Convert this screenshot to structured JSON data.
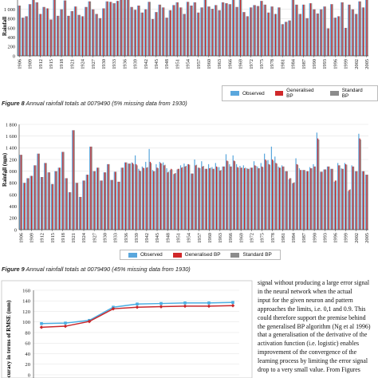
{
  "colors": {
    "observed": "#5aa7dd",
    "generalised": "#d0282a",
    "standard": "#8c8c8c",
    "line_a": "#4aaee2",
    "line_b": "#c8262a"
  },
  "figure8": {
    "caption_num": "Figure 8",
    "caption_text": "Annual rainfall totals at 0079490 (5% missing data from 1930)"
  },
  "figure9": {
    "caption_num": "Figure 9",
    "caption_text": "Annual rainfall totals at 0079490 (45% missing data from 1930)"
  },
  "legend": {
    "observed": "Observed",
    "generalised": "Generalised BP",
    "standard": "Standard BP"
  },
  "body_text": [
    "signal without producing a large error signal",
    "in the neural network when the actual",
    "input for the given neuron and pattern",
    "approaches the limits, i.e. 0,1 and 0.9. This",
    "could therefore support the premise behind",
    "the generalised BP algorithm (Ng et al 1996)",
    "that a generalisation of the derivative of the",
    "activation function (i.e. logistic) enables",
    "improvement of the convergence of the",
    "learning process by limiting the error signal",
    "drop to a very small value. From Figures"
  ],
  "chart_data": [
    {
      "type": "bar",
      "ylabel": "Rainfall",
      "ylim": [
        0,
        1200
      ],
      "yticks": [
        "0",
        "200",
        "400",
        "600",
        "800",
        "1 000"
      ],
      "ytick_values": [
        0,
        200,
        400,
        600,
        800,
        1000
      ],
      "x_start": 1906,
      "xtick_labels": [
        "1906",
        "1909",
        "1912",
        "1915",
        "1918",
        "1921",
        "1924",
        "1927",
        "1930",
        "1933",
        "1936",
        "1939",
        "1942",
        "1945",
        "1948",
        "1951",
        "1954",
        "1957",
        "1960",
        "1963",
        "1966",
        "1969",
        "1972",
        "1975",
        "1978",
        "1981",
        "1984",
        "1987",
        "1990",
        "1993",
        "1996",
        "1999",
        "2002",
        "2005"
      ],
      "legend_position": "bottom-right",
      "grid": true,
      "series": [
        {
          "name": "Observed",
          "values": [
            1080,
            820,
            850,
            1110,
            1240,
            1150,
            900,
            1050,
            1020,
            780,
            1200,
            860,
            1000,
            1190,
            860,
            960,
            1060,
            880,
            850,
            1050,
            1170,
            1000,
            900,
            810,
            1020,
            1170,
            1160,
            1130,
            1180,
            1260,
            1210,
            1240,
            1050,
            990,
            1080,
            930,
            1000,
            1160,
            790,
            940,
            1100,
            1040,
            820,
            980,
            1090,
            1150,
            1040,
            900,
            1160,
            1080,
            1150,
            930,
            1040,
            1200,
            1060,
            1010,
            1090,
            980,
            1150,
            1130,
            1110,
            1230,
            1050,
            1230,
            940,
            850,
            1040,
            1090,
            1070,
            1180,
            1100,
            930,
            1060,
            900,
            1040,
            680,
            730,
            760,
            1240,
            1100,
            900,
            1100,
            810,
            1130,
            1000,
            910,
            1000,
            1060,
            590,
            1110,
            820,
            850,
            1150,
            600,
            1100,
            1000,
            900,
            1170,
            1040,
            1200
          ]
        },
        {
          "name": "Generalised BP",
          "values": [
            1080,
            820,
            850,
            1110,
            1240,
            1150,
            900,
            1050,
            1020,
            780,
            1200,
            860,
            1000,
            1190,
            860,
            960,
            1060,
            880,
            850,
            1050,
            1170,
            1000,
            900,
            810,
            1020,
            1170,
            1160,
            1130,
            1180,
            1260,
            1210,
            1240,
            1050,
            990,
            1080,
            930,
            1000,
            1160,
            790,
            940,
            1100,
            1040,
            820,
            980,
            1090,
            1150,
            1040,
            900,
            1160,
            1080,
            1150,
            930,
            1040,
            1200,
            1060,
            1010,
            1090,
            980,
            1150,
            1130,
            1110,
            1230,
            1050,
            1230,
            940,
            850,
            1040,
            1090,
            1070,
            1180,
            1100,
            930,
            1060,
            900,
            1040,
            680,
            730,
            760,
            1240,
            1100,
            900,
            1100,
            810,
            1130,
            1000,
            910,
            1000,
            1060,
            590,
            1110,
            820,
            850,
            1150,
            600,
            1100,
            1000,
            900,
            1170,
            1040,
            1200
          ]
        },
        {
          "name": "Standard BP",
          "values": [
            1080,
            820,
            850,
            1110,
            1240,
            1150,
            900,
            1050,
            1020,
            780,
            1200,
            860,
            1000,
            1190,
            860,
            960,
            1060,
            880,
            850,
            1050,
            1170,
            1000,
            900,
            810,
            1020,
            1170,
            1160,
            1130,
            1180,
            1260,
            1210,
            1240,
            1050,
            990,
            1080,
            930,
            1000,
            1160,
            790,
            940,
            1100,
            1040,
            820,
            980,
            1090,
            1150,
            1040,
            900,
            1160,
            1080,
            1150,
            930,
            1040,
            1200,
            1060,
            1010,
            1090,
            980,
            1150,
            1130,
            1110,
            1230,
            1050,
            1230,
            940,
            850,
            1040,
            1090,
            1070,
            1180,
            1100,
            930,
            1060,
            900,
            1040,
            680,
            730,
            760,
            1240,
            1100,
            900,
            1100,
            810,
            1130,
            1000,
            910,
            1000,
            1060,
            590,
            1110,
            820,
            850,
            1150,
            600,
            1100,
            1000,
            900,
            1170,
            1040,
            1200
          ]
        }
      ]
    },
    {
      "type": "bar",
      "ylabel": "Rainfall (mm)",
      "ylim": [
        0,
        1800
      ],
      "yticks": [
        "0",
        "200",
        "400",
        "600",
        "800",
        "1 000",
        "1 200",
        "1 400",
        "1 600",
        "1 800"
      ],
      "ytick_values": [
        0,
        200,
        400,
        600,
        800,
        1000,
        1200,
        1400,
        1600,
        1800
      ],
      "x_start": 1906,
      "xtick_labels": [
        "1906",
        "1909",
        "1912",
        "1915",
        "1918",
        "1921",
        "1924",
        "1927",
        "1930",
        "1933",
        "1936",
        "1939",
        "1942",
        "1945",
        "1948",
        "1951",
        "1954",
        "1957",
        "1960",
        "1963",
        "1966",
        "1969",
        "1972",
        "1975",
        "1978",
        "1981",
        "1984",
        "1987",
        "1990",
        "1993",
        "1996",
        "1999",
        "2002",
        "2005"
      ],
      "legend_position": "bottom-right",
      "grid": true,
      "series": [
        {
          "name": "Observed",
          "values": [
            1280,
            800,
            880,
            920,
            1100,
            1300,
            900,
            1140,
            980,
            780,
            1000,
            1060,
            1330,
            880,
            640,
            1700,
            800,
            560,
            840,
            940,
            1420,
            1000,
            1060,
            840,
            980,
            1120,
            850,
            990,
            820,
            1060,
            1150,
            1130,
            1150,
            1270,
            1040,
            1080,
            1160,
            1380,
            1020,
            1120,
            1160,
            1150,
            1050,
            1020,
            950,
            1030,
            1100,
            1130,
            1120,
            960,
            1200,
            1060,
            1170,
            1040,
            1120,
            1070,
            1140,
            1070,
            1080,
            1290,
            1120,
            1270,
            1120,
            1090,
            1100,
            1050,
            1060,
            1170,
            1080,
            1140,
            1300,
            1190,
            1420,
            1250,
            1080,
            1100,
            1000,
            860,
            790,
            1220,
            1050,
            1020,
            1000,
            1070,
            1120,
            1660,
            990,
            1030,
            1080,
            1040,
            820,
            1140,
            1050,
            1140,
            660,
            1100,
            1000,
            1640,
            1000,
            940
          ]
        },
        {
          "name": "Generalised BP",
          "values": [
            1280,
            800,
            880,
            920,
            1100,
            1300,
            900,
            1140,
            980,
            780,
            1000,
            1060,
            1330,
            880,
            640,
            1700,
            800,
            560,
            840,
            940,
            1420,
            1000,
            1060,
            840,
            980,
            1120,
            850,
            990,
            820,
            1060,
            1150,
            1130,
            1140,
            1120,
            1010,
            1060,
            1060,
            1160,
            1000,
            1060,
            1140,
            1100,
            980,
            1040,
            960,
            1040,
            1060,
            1080,
            1120,
            960,
            1100,
            1060,
            1080,
            1040,
            1050,
            1040,
            1080,
            1010,
            1080,
            1180,
            1080,
            1180,
            1070,
            1060,
            1050,
            1040,
            1060,
            1100,
            1050,
            1080,
            1200,
            1120,
            1200,
            1140,
            1060,
            1080,
            1000,
            880,
            800,
            1120,
            1020,
            1020,
            1000,
            1050,
            1080,
            1560,
            990,
            1030,
            1080,
            1040,
            840,
            1100,
            1040,
            1120,
            680,
            1080,
            1000,
            1560,
            1000,
            940
          ]
        },
        {
          "name": "Standard BP",
          "values": [
            1280,
            800,
            880,
            920,
            1100,
            1300,
            900,
            1140,
            980,
            780,
            1000,
            1060,
            1330,
            880,
            640,
            1700,
            800,
            560,
            840,
            940,
            1420,
            1000,
            1060,
            840,
            980,
            1120,
            850,
            990,
            820,
            1060,
            1150,
            1130,
            1120,
            1100,
            1000,
            1050,
            1070,
            1140,
            1000,
            1050,
            1130,
            1110,
            990,
            1030,
            970,
            1040,
            1070,
            1090,
            1110,
            960,
            1110,
            1050,
            1090,
            1040,
            1060,
            1040,
            1070,
            1020,
            1080,
            1170,
            1080,
            1170,
            1060,
            1060,
            1060,
            1040,
            1060,
            1090,
            1050,
            1070,
            1180,
            1110,
            1180,
            1130,
            1060,
            1080,
            1000,
            880,
            810,
            1110,
            1020,
            1020,
            1000,
            1050,
            1080,
            1540,
            990,
            1030,
            1080,
            1040,
            840,
            1100,
            1040,
            1110,
            690,
            1080,
            1000,
            1540,
            1000,
            940
          ]
        }
      ]
    },
    {
      "type": "line",
      "ylabel": "curacy in terms of RMSE (mm)",
      "ylim": [
        0,
        160
      ],
      "yticks": [
        "0",
        "20",
        "40",
        "60",
        "80",
        "100",
        "120",
        "140",
        "160"
      ],
      "ytick_values": [
        0,
        20,
        40,
        60,
        80,
        100,
        120,
        140,
        160
      ],
      "x_count": 9,
      "grid": true,
      "series": [
        {
          "values": [
            97,
            98,
            103,
            128,
            134,
            135,
            136,
            136,
            137
          ]
        },
        {
          "values": [
            90,
            92,
            101,
            125,
            128,
            129,
            130,
            130,
            131
          ]
        }
      ]
    }
  ]
}
